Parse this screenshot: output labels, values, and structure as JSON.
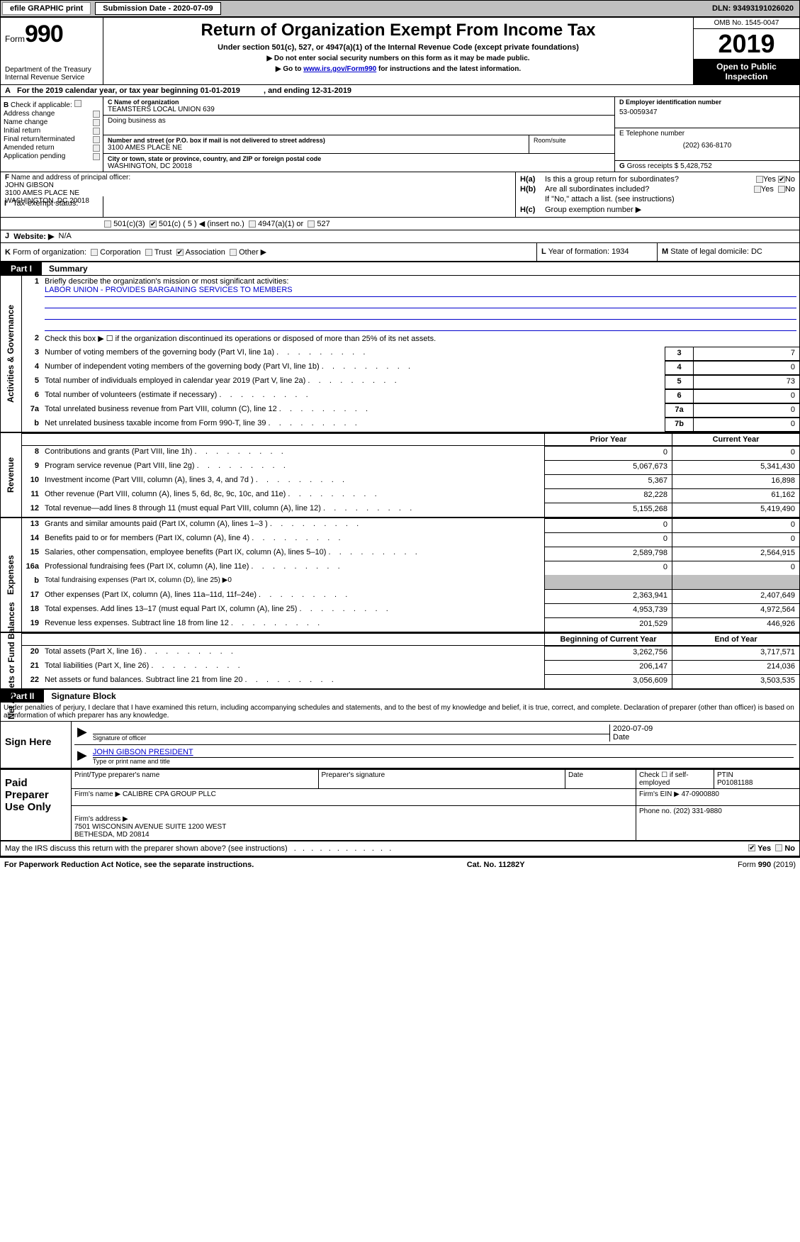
{
  "top_bar": {
    "efile_label": "efile GRAPHIC print",
    "submission_label": "Submission Date - 2020-07-09",
    "dln": "DLN: 93493191026020"
  },
  "header": {
    "form_prefix": "Form",
    "form_number": "990",
    "dept": "Department of the Treasury",
    "irs": "Internal Revenue Service",
    "title": "Return of Organization Exempt From Income Tax",
    "subtitle": "Under section 501(c), 527, or 4947(a)(1) of the Internal Revenue Code (except private foundations)",
    "note1": "Do not enter social security numbers on this form as it may be made public.",
    "note2_pre": "Go to ",
    "note2_link": "www.irs.gov/Form990",
    "note2_post": " for instructions and the latest information.",
    "omb": "OMB No. 1545-0047",
    "year": "2019",
    "open": "Open to Public Inspection"
  },
  "row_a": {
    "letter": "A",
    "text": "For the 2019 calendar year, or tax year beginning 01-01-2019",
    "ending": ", and ending 12-31-2019"
  },
  "section_b": {
    "letter": "B",
    "check_label": "Check if applicable:",
    "items": [
      "Address change",
      "Name change",
      "Initial return",
      "Final return/terminated",
      "Amended return",
      "Application pending"
    ]
  },
  "section_c": {
    "name_label": "C Name of organization",
    "name": "TEAMSTERS LOCAL UNION 639",
    "dba_label": "Doing business as",
    "dba": "",
    "street_label": "Number and street (or P.O. box if mail is not delivered to street address)",
    "street": "3100 AMES PLACE NE",
    "room_label": "Room/suite",
    "city_label": "City or town, state or province, country, and ZIP or foreign postal code",
    "city": "WASHINGTON, DC  20018"
  },
  "section_d": {
    "label": "D Employer identification number",
    "ein": "53-0059347"
  },
  "section_e": {
    "label": "E Telephone number",
    "phone": "(202) 636-8170"
  },
  "section_g": {
    "label": "G",
    "text": "Gross receipts $ 5,428,752"
  },
  "section_f": {
    "label": "F",
    "text": "Name and address of principal officer:",
    "name": "JOHN GIBSON",
    "addr1": "3100 AMES PLACE NE",
    "addr2": "WASHINGTON, DC  20018"
  },
  "section_h": {
    "ha_label": "H(a)",
    "ha_text": "Is this a group return for subordinates?",
    "ha_yes": "Yes",
    "ha_no": "No",
    "hb_label": "H(b)",
    "hb_text": "Are all subordinates included?",
    "hb_note": "If \"No,\" attach a list. (see instructions)",
    "hc_label": "H(c)",
    "hc_text": "Group exemption number ▶"
  },
  "row_i": {
    "letter": "I",
    "label": "Tax-exempt status:",
    "opts": [
      "501(c)(3)",
      "501(c) ( 5 ) ◀ (insert no.)",
      "4947(a)(1) or",
      "527"
    ]
  },
  "row_j": {
    "letter": "J",
    "label": "Website: ▶",
    "value": "N/A"
  },
  "row_k": {
    "letter": "K",
    "label": "Form of organization:",
    "opts": [
      "Corporation",
      "Trust",
      "Association",
      "Other ▶"
    ]
  },
  "row_l": {
    "label": "L",
    "text": "Year of formation: 1934"
  },
  "row_m": {
    "label": "M",
    "text": "State of legal domicile: DC"
  },
  "part1": {
    "tab": "Part I",
    "title": "Summary",
    "governance_label": "Activities & Governance",
    "line1": "Briefly describe the organization's mission or most significant activities:",
    "mission": "LABOR UNION - PROVIDES BARGAINING SERVICES TO MEMBERS",
    "line2": "Check this box ▶ ☐ if the organization discontinued its operations or disposed of more than 25% of its net assets.",
    "lines_single": [
      {
        "n": "3",
        "desc": "Number of voting members of the governing body (Part VI, line 1a)",
        "box": "3",
        "val": "7"
      },
      {
        "n": "4",
        "desc": "Number of independent voting members of the governing body (Part VI, line 1b)",
        "box": "4",
        "val": "0"
      },
      {
        "n": "5",
        "desc": "Total number of individuals employed in calendar year 2019 (Part V, line 2a)",
        "box": "5",
        "val": "73"
      },
      {
        "n": "6",
        "desc": "Total number of volunteers (estimate if necessary)",
        "box": "6",
        "val": "0"
      },
      {
        "n": "7a",
        "desc": "Total unrelated business revenue from Part VIII, column (C), line 12",
        "box": "7a",
        "val": "0"
      },
      {
        "n": "b",
        "desc": "Net unrelated business taxable income from Form 990-T, line 39",
        "box": "7b",
        "val": "0"
      }
    ],
    "prior_label": "Prior Year",
    "current_label": "Current Year",
    "revenue_label": "Revenue",
    "revenue_lines": [
      {
        "n": "8",
        "desc": "Contributions and grants (Part VIII, line 1h)",
        "prior": "0",
        "curr": "0"
      },
      {
        "n": "9",
        "desc": "Program service revenue (Part VIII, line 2g)",
        "prior": "5,067,673",
        "curr": "5,341,430"
      },
      {
        "n": "10",
        "desc": "Investment income (Part VIII, column (A), lines 3, 4, and 7d )",
        "prior": "5,367",
        "curr": "16,898"
      },
      {
        "n": "11",
        "desc": "Other revenue (Part VIII, column (A), lines 5, 6d, 8c, 9c, 10c, and 11e)",
        "prior": "82,228",
        "curr": "61,162"
      },
      {
        "n": "12",
        "desc": "Total revenue—add lines 8 through 11 (must equal Part VIII, column (A), line 12)",
        "prior": "5,155,268",
        "curr": "5,419,490"
      }
    ],
    "expenses_label": "Expenses",
    "expense_lines": [
      {
        "n": "13",
        "desc": "Grants and similar amounts paid (Part IX, column (A), lines 1–3 )",
        "prior": "0",
        "curr": "0"
      },
      {
        "n": "14",
        "desc": "Benefits paid to or for members (Part IX, column (A), line 4)",
        "prior": "0",
        "curr": "0"
      },
      {
        "n": "15",
        "desc": "Salaries, other compensation, employee benefits (Part IX, column (A), lines 5–10)",
        "prior": "2,589,798",
        "curr": "2,564,915"
      },
      {
        "n": "16a",
        "desc": "Professional fundraising fees (Part IX, column (A), line 11e)",
        "prior": "0",
        "curr": "0"
      }
    ],
    "line16b": {
      "n": "b",
      "desc": "Total fundraising expenses (Part IX, column (D), line 25) ▶0"
    },
    "expense_lines2": [
      {
        "n": "17",
        "desc": "Other expenses (Part IX, column (A), lines 11a–11d, 11f–24e)",
        "prior": "2,363,941",
        "curr": "2,407,649"
      },
      {
        "n": "18",
        "desc": "Total expenses. Add lines 13–17 (must equal Part IX, column (A), line 25)",
        "prior": "4,953,739",
        "curr": "4,972,564"
      },
      {
        "n": "19",
        "desc": "Revenue less expenses. Subtract line 18 from line 12",
        "prior": "201,529",
        "curr": "446,926"
      }
    ],
    "net_label": "Net Assets or Fund Balances",
    "begin_label": "Beginning of Current Year",
    "end_label": "End of Year",
    "net_lines": [
      {
        "n": "20",
        "desc": "Total assets (Part X, line 16)",
        "prior": "3,262,756",
        "curr": "3,717,571"
      },
      {
        "n": "21",
        "desc": "Total liabilities (Part X, line 26)",
        "prior": "206,147",
        "curr": "214,036"
      },
      {
        "n": "22",
        "desc": "Net assets or fund balances. Subtract line 21 from line 20",
        "prior": "3,056,609",
        "curr": "3,503,535"
      }
    ]
  },
  "part2": {
    "tab": "Part II",
    "title": "Signature Block",
    "perjury": "Under penalties of perjury, I declare that I have examined this return, including accompanying schedules and statements, and to the best of my knowledge and belief, it is true, correct, and complete. Declaration of preparer (other than officer) is based on all information of which preparer has any knowledge.",
    "sign_here": "Sign Here",
    "sig_officer": "Signature of officer",
    "sig_date": "2020-07-09",
    "date_lbl": "Date",
    "name_title": "JOHN GIBSON  PRESIDENT",
    "name_title_lbl": "Type or print name and title"
  },
  "paid": {
    "label": "Paid Preparer Use Only",
    "print_name_lbl": "Print/Type preparer's name",
    "prep_sig_lbl": "Preparer's signature",
    "date_lbl": "Date",
    "check_lbl": "Check ☐ if self-employed",
    "ptin_lbl": "PTIN",
    "ptin": "P01081188",
    "firm_name_lbl": "Firm's name    ▶",
    "firm_name": "CALIBRE CPA GROUP PLLC",
    "firm_ein_lbl": "Firm's EIN ▶",
    "firm_ein": "47-0900880",
    "firm_addr_lbl": "Firm's address ▶",
    "firm_addr": "7501 WISCONSIN AVENUE SUITE 1200 WEST\nBETHESDA, MD  20814",
    "phone_lbl": "Phone no.",
    "phone": "(202) 331-9880"
  },
  "irs_discuss": {
    "text": "May the IRS discuss this return with the preparer shown above? (see instructions)",
    "yes": "Yes",
    "no": "No"
  },
  "footer": {
    "left": "For Paperwork Reduction Act Notice, see the separate instructions.",
    "center": "Cat. No. 11282Y",
    "right": "Form 990 (2019)"
  }
}
